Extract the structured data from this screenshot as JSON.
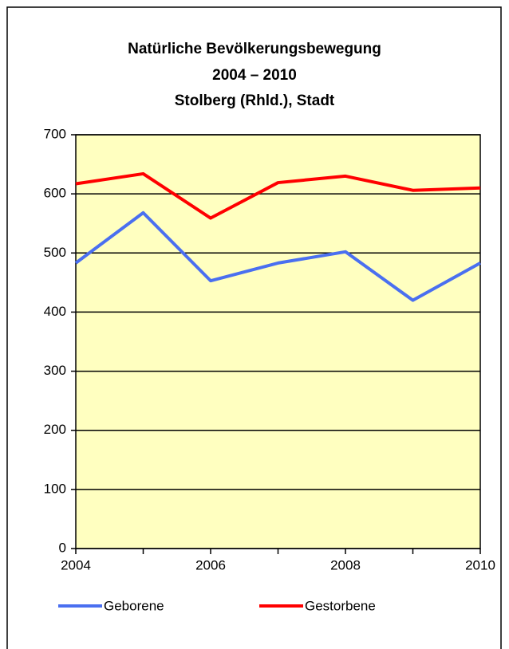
{
  "chart_data": {
    "type": "line",
    "title": [
      "Natürliche Bevölkerungsbewegung",
      "2004 – 2010",
      "Stolberg (Rhld.), Stadt"
    ],
    "x": [
      2004,
      2005,
      2006,
      2007,
      2008,
      2009,
      2010
    ],
    "series": [
      {
        "name": "Geborene",
        "color": "#4a6ff0",
        "values": [
          483,
          568,
          453,
          483,
          502,
          420,
          483
        ]
      },
      {
        "name": "Gestorbene",
        "color": "#ff0000",
        "values": [
          617,
          634,
          559,
          619,
          630,
          606,
          610
        ]
      }
    ],
    "xlim": [
      2004,
      2010
    ],
    "xticks": [
      2004,
      2006,
      2008,
      2010
    ],
    "ylim": [
      0,
      700
    ],
    "yticks": [
      0,
      100,
      200,
      300,
      400,
      500,
      600,
      700
    ],
    "grid": true,
    "legend": "bottom",
    "background": "#ffffc0"
  }
}
